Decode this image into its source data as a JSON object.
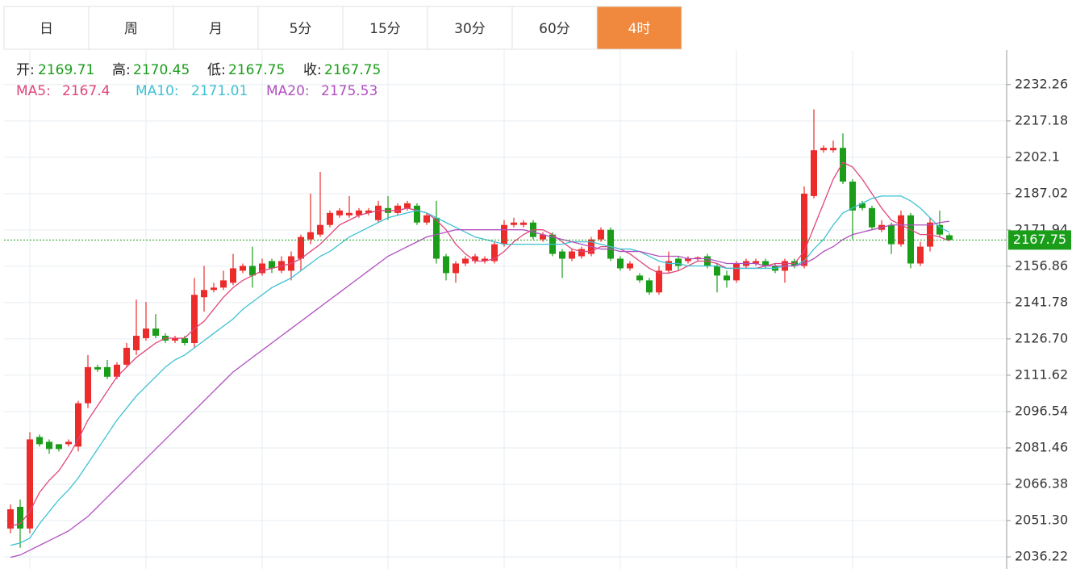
{
  "tabs": [
    "日",
    "周",
    "月",
    "5分",
    "15分",
    "30分",
    "60分",
    "4时"
  ],
  "active_tab": 7,
  "chart_data": {
    "type": "candlestick",
    "ohlc_labels": [
      "开:",
      "高:",
      "低:",
      "收:"
    ],
    "up_color": "#ec2b2b",
    "down_color": "#1a9e1a",
    "open": [
      2048,
      2057,
      2048,
      2086,
      2084,
      2083,
      2083,
      2082,
      2100,
      2115,
      2115,
      2111,
      2116,
      2122,
      2127,
      2131,
      2128,
      2126,
      2127,
      2125,
      2144,
      2147,
      2148,
      2150,
      2155,
      2157,
      2154,
      2159,
      2155,
      2155,
      2160,
      2168,
      2170,
      2174,
      2178,
      2178,
      2178,
      2179,
      2176,
      2181,
      2179,
      2181,
      2182,
      2175,
      2177,
      2161,
      2154,
      2158,
      2159,
      2159,
      2159,
      2166,
      2174,
      2174,
      2175,
      2168,
      2170,
      2163,
      2160,
      2161,
      2162,
      2168,
      2172,
      2160,
      2156,
      2153,
      2151,
      2146,
      2155,
      2160,
      2159,
      2160,
      2161,
      2157,
      2153,
      2151,
      2157,
      2158,
      2159,
      2157,
      2155,
      2159,
      2157,
      2186,
      2205,
      2205,
      2206,
      2192,
      2183,
      2181,
      2172,
      2174,
      2166,
      2178,
      2158,
      2165,
      2174,
      2169.71
    ],
    "high": [
      2058,
      2060,
      2088,
      2087,
      2085,
      2083,
      2085,
      2101,
      2120,
      2116,
      2118,
      2117,
      2125,
      2143,
      2142,
      2137,
      2129,
      2128,
      2128,
      2152,
      2157,
      2150,
      2155,
      2162,
      2158,
      2165,
      2160,
      2160,
      2161,
      2163,
      2170,
      2187,
      2196,
      2180,
      2181,
      2186,
      2181,
      2181,
      2184,
      2186,
      2183,
      2184,
      2183,
      2179,
      2184,
      2162,
      2159,
      2161,
      2162,
      2161,
      2167,
      2176,
      2177,
      2176,
      2176,
      2171,
      2171,
      2164,
      2164,
      2165,
      2169,
      2173,
      2173,
      2161,
      2159,
      2154,
      2152,
      2157,
      2163,
      2161,
      2161,
      2161,
      2162,
      2158,
      2155,
      2159,
      2160,
      2160,
      2160,
      2158,
      2160,
      2160,
      2190,
      2222,
      2207,
      2209,
      2212,
      2193,
      2184,
      2182,
      2176,
      2175,
      2180,
      2179,
      2167,
      2177,
      2180,
      2170.45
    ],
    "low": [
      2046,
      2040,
      2046,
      2082,
      2079,
      2080,
      2082,
      2080,
      2098,
      2113,
      2110,
      2110,
      2115,
      2120,
      2126,
      2127,
      2125,
      2125,
      2124,
      2123,
      2138,
      2146,
      2147,
      2149,
      2154,
      2148,
      2153,
      2154,
      2154,
      2151,
      2155,
      2166,
      2169,
      2173,
      2177,
      2177,
      2177,
      2178,
      2175,
      2176,
      2178,
      2180,
      2174,
      2174,
      2158,
      2151,
      2150,
      2157,
      2158,
      2158,
      2158,
      2165,
      2173,
      2173,
      2168,
      2167,
      2161,
      2152,
      2159,
      2160,
      2161,
      2167,
      2159,
      2155,
      2155,
      2150,
      2145,
      2145,
      2154,
      2155,
      2158,
      2159,
      2156,
      2146,
      2148,
      2150,
      2156,
      2157,
      2156,
      2154,
      2150,
      2156,
      2156,
      2185,
      2204,
      2204,
      2191,
      2168,
      2180,
      2172,
      2171,
      2162,
      2165,
      2156,
      2157,
      2163,
      2169,
      2167.75
    ],
    "close": [
      2056,
      2048,
      2085,
      2083,
      2081,
      2081,
      2084,
      2100,
      2115,
      2114,
      2111,
      2116,
      2123,
      2128,
      2131,
      2128,
      2126,
      2127,
      2125,
      2145,
      2147,
      2148,
      2151,
      2156,
      2157,
      2153,
      2158,
      2156,
      2159,
      2161,
      2169,
      2171,
      2174,
      2179,
      2180,
      2179,
      2180,
      2180,
      2182,
      2179,
      2182,
      2183,
      2175,
      2178,
      2160,
      2154,
      2158,
      2160,
      2161,
      2160,
      2166,
      2174,
      2175,
      2175,
      2169,
      2170,
      2162,
      2160,
      2163,
      2164,
      2168,
      2172,
      2160,
      2156,
      2158,
      2151,
      2146,
      2155,
      2159,
      2157,
      2160,
      2160.5,
      2157,
      2153,
      2151,
      2158,
      2159,
      2159,
      2157,
      2155,
      2159,
      2157,
      2187,
      2205,
      2206,
      2206,
      2192,
      2180,
      2181,
      2173,
      2174,
      2166,
      2178,
      2158,
      2165,
      2175,
      2170,
      2167.75
    ],
    "series": [
      {
        "name": "MA5:",
        "color": "#e0457b",
        "values": [
          2049,
          2050,
          2055,
          2063,
          2068,
          2072,
          2078,
          2085,
          2093,
          2099,
          2105,
          2111,
          2115,
          2119,
          2122,
          2125,
          2127,
          2127,
          2127,
          2131,
          2134,
          2139,
          2144,
          2148,
          2151,
          2153,
          2155,
          2156,
          2157,
          2158,
          2160,
          2163,
          2166,
          2170,
          2174,
          2176,
          2178,
          2179,
          2180,
          2180,
          2180,
          2181,
          2180,
          2179,
          2176,
          2172,
          2166,
          2162,
          2159,
          2159,
          2160,
          2163,
          2167,
          2170,
          2172,
          2172,
          2170,
          2167,
          2164,
          2163,
          2163,
          2165,
          2165,
          2164,
          2162,
          2159,
          2156,
          2154,
          2154,
          2155,
          2157,
          2159,
          2159,
          2158,
          2156,
          2156,
          2156,
          2156,
          2157,
          2158,
          2158,
          2158,
          2163,
          2173,
          2183,
          2193,
          2200,
          2198,
          2193,
          2187,
          2181,
          2176,
          2174,
          2172,
          2170,
          2170,
          2169,
          2167.4
        ]
      },
      {
        "name": "MA10:",
        "color": "#3ec1d3",
        "values": [
          2041,
          2042,
          2044,
          2050,
          2055,
          2060,
          2064,
          2069,
          2075,
          2081,
          2087,
          2093,
          2098,
          2103,
          2107,
          2111,
          2115,
          2118,
          2120,
          2123,
          2126,
          2129,
          2132,
          2135,
          2139,
          2142,
          2145,
          2148,
          2150,
          2152,
          2155,
          2158,
          2161,
          2163,
          2166,
          2169,
          2171,
          2173,
          2175,
          2177,
          2178,
          2179,
          2180,
          2179,
          2177,
          2175,
          2173,
          2171,
          2169,
          2168,
          2167,
          2166,
          2166,
          2166,
          2166,
          2166,
          2166,
          2166,
          2167,
          2167,
          2167,
          2166,
          2165,
          2164,
          2164,
          2163,
          2161,
          2159,
          2158,
          2158,
          2157,
          2157,
          2157,
          2157,
          2156,
          2156,
          2156,
          2156,
          2156,
          2156,
          2157,
          2157,
          2159,
          2164,
          2168,
          2174,
          2179,
          2181,
          2183,
          2185,
          2186,
          2186,
          2186,
          2184,
          2181,
          2177,
          2173,
          2171.01
        ]
      },
      {
        "name": "MA20:",
        "color": "#b04fc0",
        "values": [
          2036,
          2037,
          2039,
          2041,
          2043,
          2045,
          2047,
          2050,
          2053,
          2057,
          2061,
          2065,
          2069,
          2073,
          2077,
          2081,
          2085,
          2089,
          2093,
          2097,
          2101,
          2105,
          2109,
          2113,
          2116,
          2119,
          2122,
          2125,
          2128,
          2131,
          2134,
          2137,
          2140,
          2143,
          2146,
          2149,
          2152,
          2155,
          2158,
          2161,
          2163,
          2165,
          2167,
          2169,
          2170,
          2171,
          2172,
          2172,
          2172,
          2172,
          2172,
          2172,
          2172,
          2172,
          2171,
          2170,
          2169,
          2168,
          2167,
          2166,
          2165,
          2164,
          2164,
          2163,
          2163,
          2163,
          2162,
          2161,
          2161,
          2161,
          2160,
          2160,
          2160,
          2159,
          2158,
          2158,
          2158,
          2158,
          2157,
          2157,
          2157,
          2157,
          2158,
          2160,
          2163,
          2165,
          2168,
          2170,
          2171,
          2172,
          2173,
          2174,
          2174,
          2174,
          2174,
          2174,
          2175,
          2175.53
        ]
      }
    ],
    "ylim": [
      2031.2,
      2246.6
    ],
    "yticks": [
      2036.22,
      {
        "value": 2051.3,
        "label": "2051.30"
      },
      2066.38,
      2081.46,
      2096.54,
      2111.62,
      {
        "value": 2126.7,
        "label": "2126.70"
      },
      2141.78,
      2156.86,
      2171.94,
      2187.02,
      2202.1,
      2217.18,
      2232.26
    ],
    "grid": true
  }
}
